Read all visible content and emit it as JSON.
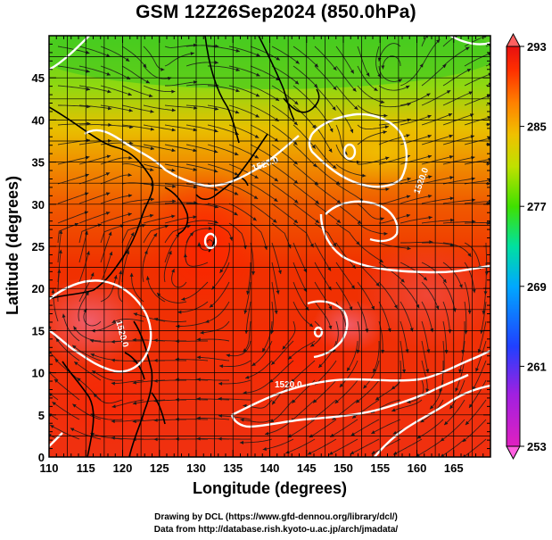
{
  "title": "GSM 12Z26Sep2024 (850.0hPa)",
  "xlabel": "Longitude (degrees)",
  "ylabel": "Latitude  (degrees)",
  "credit_line1": "Drawing by DCL (https://www.gfd-dennou.org/library/dcl/)",
  "credit_line2": "Data from http://database.rish.kyoto-u.ac.jp/arch/jmadata/",
  "contour_labels": [
    "1520.0",
    "1520.0",
    "1520.0",
    "1520.0"
  ],
  "chart_data": {
    "type": "heatmap",
    "field": "temperature (color) with streamlines and geopotential height contours",
    "xlim": [
      110,
      170
    ],
    "ylim": [
      0,
      50
    ],
    "x_ticks": [
      110,
      115,
      120,
      125,
      130,
      135,
      140,
      145,
      150,
      155,
      160,
      165
    ],
    "y_ticks": [
      0,
      5,
      10,
      15,
      20,
      25,
      30,
      35,
      40,
      45
    ],
    "grid": true,
    "colorbar": {
      "min": 253,
      "max": 293,
      "ticks": [
        253,
        261,
        269,
        277,
        285,
        293
      ],
      "colors": [
        "#d000d0",
        "#4040ff",
        "#00a0ff",
        "#00e080",
        "#80e000",
        "#f0d000",
        "#ff8000",
        "#ff3000",
        "#e00000"
      ]
    },
    "contour_level": 1520.0,
    "temperature_samples": [
      {
        "lon": 115,
        "lat": 45,
        "t": 281
      },
      {
        "lon": 130,
        "lat": 45,
        "t": 279
      },
      {
        "lon": 150,
        "lat": 45,
        "t": 280
      },
      {
        "lon": 165,
        "lat": 45,
        "t": 279
      },
      {
        "lon": 115,
        "lat": 35,
        "t": 287
      },
      {
        "lon": 135,
        "lat": 38,
        "t": 284
      },
      {
        "lon": 150,
        "lat": 38,
        "t": 287
      },
      {
        "lon": 165,
        "lat": 35,
        "t": 286
      },
      {
        "lon": 125,
        "lat": 28,
        "t": 291
      },
      {
        "lon": 145,
        "lat": 28,
        "t": 290
      },
      {
        "lon": 160,
        "lat": 25,
        "t": 289
      },
      {
        "lon": 115,
        "lat": 18,
        "t": 290
      },
      {
        "lon": 135,
        "lat": 15,
        "t": 292
      },
      {
        "lon": 155,
        "lat": 15,
        "t": 291
      },
      {
        "lon": 120,
        "lat": 5,
        "t": 292
      },
      {
        "lon": 145,
        "lat": 5,
        "t": 291
      },
      {
        "lon": 165,
        "lat": 5,
        "t": 291
      }
    ]
  }
}
